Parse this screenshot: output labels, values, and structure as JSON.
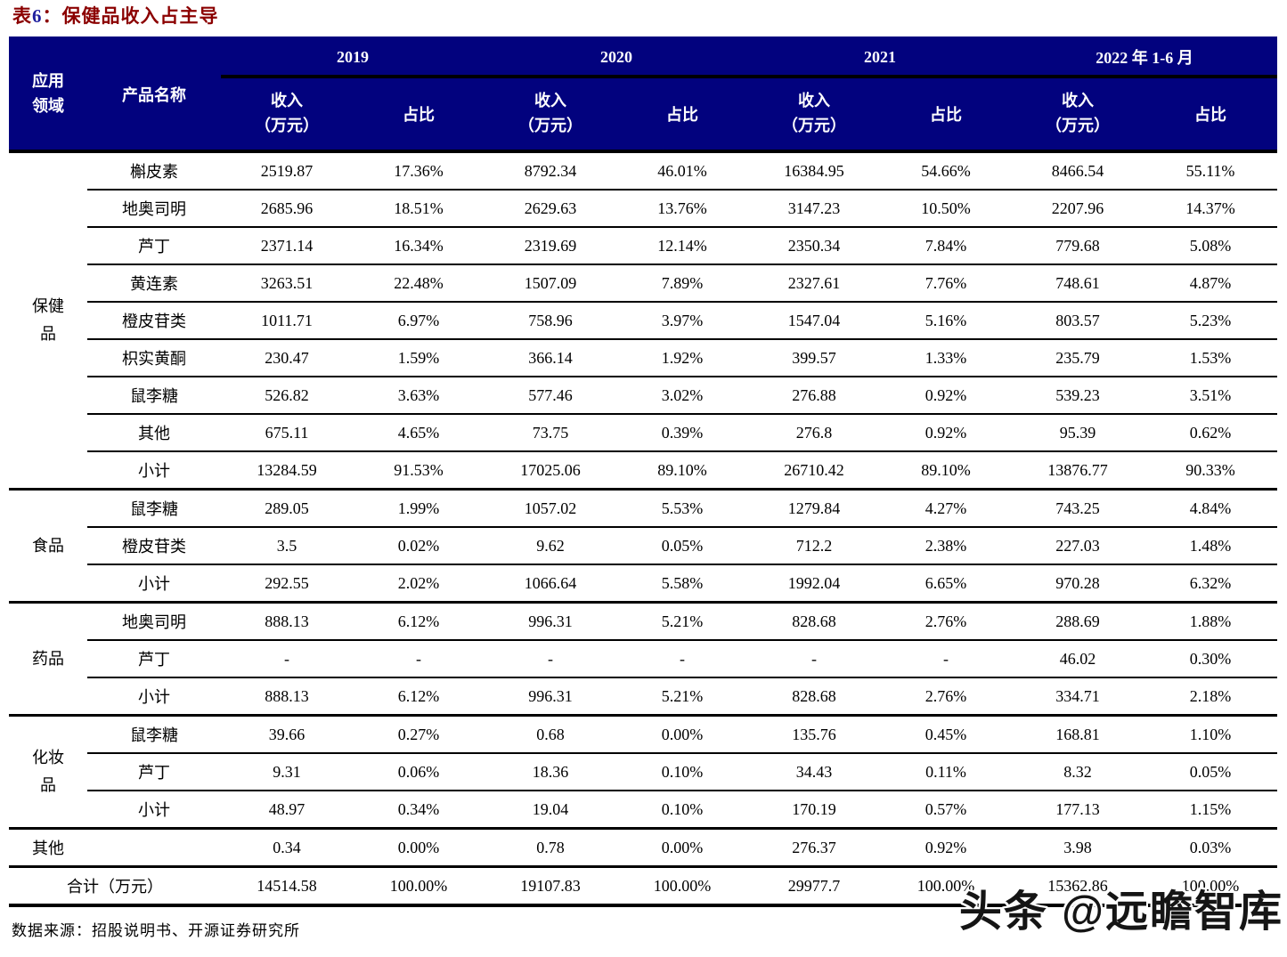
{
  "title": {
    "prefix": "表",
    "num": "6",
    "colon": "：",
    "text": "保健品收入占主导"
  },
  "colors": {
    "header_bg": "#02027e",
    "title_red": "#8b0000",
    "title_num_blue": "#1f1f9e",
    "border_black": "#000000",
    "watermark_text": "#151515"
  },
  "header": {
    "app_line1": "应用",
    "app_line2": "领域",
    "product": "产品名称",
    "years": [
      "2019",
      "2020",
      "2021",
      "2022 年 1-6 月"
    ],
    "income_line1": "收入",
    "income_line2": "（万元）",
    "share": "占比"
  },
  "table": {
    "sections": [
      {
        "type": "group",
        "label": "保健品",
        "label_lines": [
          "保健",
          "品"
        ],
        "rows": [
          {
            "product": "槲皮素",
            "values": [
              "2519.87",
              "17.36%",
              "8792.34",
              "46.01%",
              "16384.95",
              "54.66%",
              "8466.54",
              "55.11%"
            ]
          },
          {
            "product": "地奥司明",
            "values": [
              "2685.96",
              "18.51%",
              "2629.63",
              "13.76%",
              "3147.23",
              "10.50%",
              "2207.96",
              "14.37%"
            ]
          },
          {
            "product": "芦丁",
            "values": [
              "2371.14",
              "16.34%",
              "2319.69",
              "12.14%",
              "2350.34",
              "7.84%",
              "779.68",
              "5.08%"
            ]
          },
          {
            "product": "黄连素",
            "values": [
              "3263.51",
              "22.48%",
              "1507.09",
              "7.89%",
              "2327.61",
              "7.76%",
              "748.61",
              "4.87%"
            ]
          },
          {
            "product": "橙皮苷类",
            "values": [
              "1011.71",
              "6.97%",
              "758.96",
              "3.97%",
              "1547.04",
              "5.16%",
              "803.57",
              "5.23%"
            ]
          },
          {
            "product": "枳实黄酮",
            "values": [
              "230.47",
              "1.59%",
              "366.14",
              "1.92%",
              "399.57",
              "1.33%",
              "235.79",
              "1.53%"
            ]
          },
          {
            "product": "鼠李糖",
            "values": [
              "526.82",
              "3.63%",
              "577.46",
              "3.02%",
              "276.88",
              "0.92%",
              "539.23",
              "3.51%"
            ]
          },
          {
            "product": "其他",
            "values": [
              "675.11",
              "4.65%",
              "73.75",
              "0.39%",
              "276.8",
              "0.92%",
              "95.39",
              "0.62%"
            ]
          },
          {
            "product": "小计",
            "values": [
              "13284.59",
              "91.53%",
              "17025.06",
              "89.10%",
              "26710.42",
              "89.10%",
              "13876.77",
              "90.33%"
            ]
          }
        ]
      },
      {
        "type": "group",
        "label": "食品",
        "label_lines": [
          "食品"
        ],
        "rows": [
          {
            "product": "鼠李糖",
            "values": [
              "289.05",
              "1.99%",
              "1057.02",
              "5.53%",
              "1279.84",
              "4.27%",
              "743.25",
              "4.84%"
            ]
          },
          {
            "product": "橙皮苷类",
            "values": [
              "3.5",
              "0.02%",
              "9.62",
              "0.05%",
              "712.2",
              "2.38%",
              "227.03",
              "1.48%"
            ]
          },
          {
            "product": "小计",
            "values": [
              "292.55",
              "2.02%",
              "1066.64",
              "5.58%",
              "1992.04",
              "6.65%",
              "970.28",
              "6.32%"
            ]
          }
        ]
      },
      {
        "type": "group",
        "label": "药品",
        "label_lines": [
          "药品"
        ],
        "rows": [
          {
            "product": "地奥司明",
            "values": [
              "888.13",
              "6.12%",
              "996.31",
              "5.21%",
              "828.68",
              "2.76%",
              "288.69",
              "1.88%"
            ]
          },
          {
            "product": "芦丁",
            "values": [
              "-",
              "-",
              "-",
              "-",
              "-",
              "-",
              "46.02",
              "0.30%"
            ]
          },
          {
            "product": "小计",
            "values": [
              "888.13",
              "6.12%",
              "996.31",
              "5.21%",
              "828.68",
              "2.76%",
              "334.71",
              "2.18%"
            ]
          }
        ]
      },
      {
        "type": "group",
        "label": "化妆品",
        "label_lines": [
          "化妆",
          "品"
        ],
        "rows": [
          {
            "product": "鼠李糖",
            "values": [
              "39.66",
              "0.27%",
              "0.68",
              "0.00%",
              "135.76",
              "0.45%",
              "168.81",
              "1.10%"
            ]
          },
          {
            "product": "芦丁",
            "values": [
              "9.31",
              "0.06%",
              "18.36",
              "0.10%",
              "34.43",
              "0.11%",
              "8.32",
              "0.05%"
            ]
          },
          {
            "product": "小计",
            "values": [
              "48.97",
              "0.34%",
              "19.04",
              "0.10%",
              "170.19",
              "0.57%",
              "177.13",
              "1.15%"
            ]
          }
        ]
      },
      {
        "type": "single",
        "label": "其他",
        "rows": [
          {
            "product": "",
            "values": [
              "0.34",
              "0.00%",
              "0.78",
              "0.00%",
              "276.37",
              "0.92%",
              "3.98",
              "0.03%"
            ]
          }
        ]
      },
      {
        "type": "merged",
        "label": "合计（万元）",
        "rows": [
          {
            "product": "",
            "values": [
              "14514.58",
              "100.00%",
              "19107.83",
              "100.00%",
              "29977.7",
              "100.00%",
              "15362.86",
              "100.00%"
            ]
          }
        ]
      }
    ]
  },
  "footer": "数据来源：招股说明书、开源证券研究所",
  "watermark": "头条 @远瞻智库"
}
